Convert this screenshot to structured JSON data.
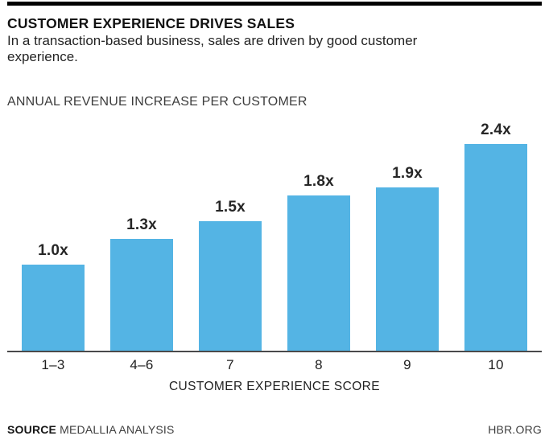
{
  "header": {
    "title": "CUSTOMER EXPERIENCE DRIVES SALES",
    "subtitle": "In a transaction-based business, sales are driven by good customer experience."
  },
  "chart": {
    "label": "ANNUAL REVENUE INCREASE PER CUSTOMER",
    "xlabel": "CUSTOMER EXPERIENCE SCORE"
  },
  "chart_data": {
    "type": "bar",
    "title": "ANNUAL REVENUE INCREASE PER CUSTOMER",
    "categories": [
      "1–3",
      "4–6",
      "7",
      "8",
      "9",
      "10"
    ],
    "values": [
      1.0,
      1.3,
      1.5,
      1.8,
      1.9,
      2.4
    ],
    "value_labels": [
      "1.0x",
      "1.3x",
      "1.5x",
      "1.8x",
      "1.9x",
      "2.4x"
    ],
    "xlabel": "CUSTOMER EXPERIENCE SCORE",
    "ylabel": "",
    "ylim": [
      0,
      2.6
    ],
    "grid": false,
    "legend": "none",
    "bar_color": "#54B4E4"
  },
  "footer": {
    "source_label": "SOURCE",
    "source_value": "MEDALLIA ANALYSIS",
    "site": "HBR.ORG"
  }
}
